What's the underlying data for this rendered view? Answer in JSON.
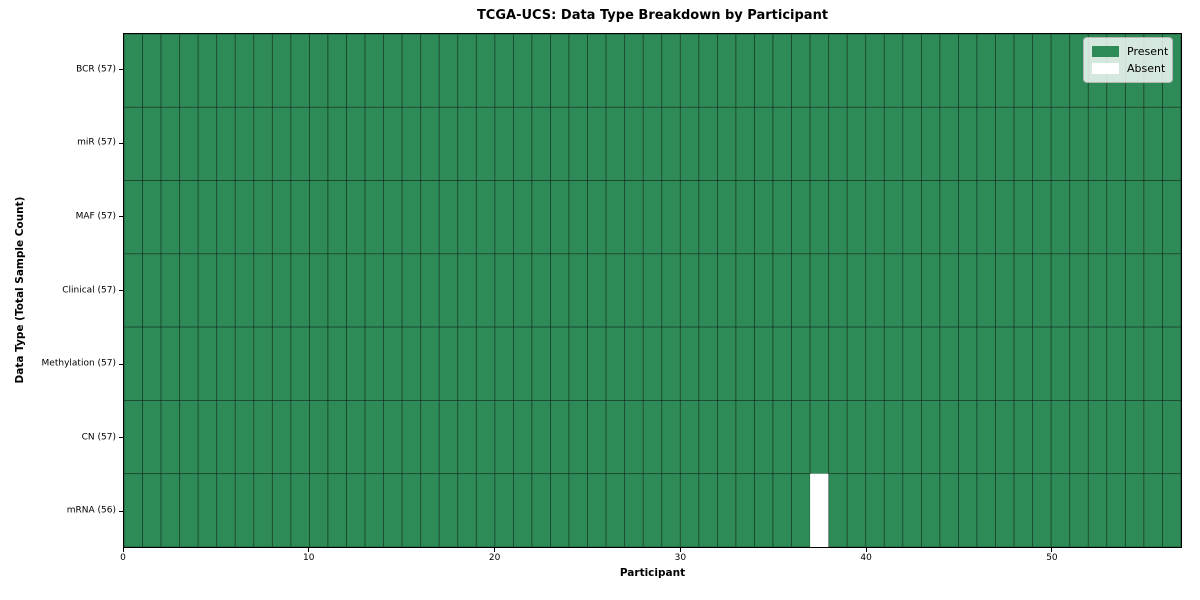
{
  "chart_data": {
    "type": "heatmap",
    "title": "TCGA-UCS: Data Type Breakdown by Participant",
    "xlabel": "Participant",
    "ylabel": "Data Type (Total Sample Count)",
    "n_participants": 57,
    "xlim": [
      0,
      57
    ],
    "x_ticks": [
      0,
      10,
      20,
      30,
      40,
      50
    ],
    "rows": [
      {
        "label": "BCR (57)",
        "data_type": "BCR",
        "total_samples": 57,
        "absent_participants": []
      },
      {
        "label": "miR (57)",
        "data_type": "miR",
        "total_samples": 57,
        "absent_participants": []
      },
      {
        "label": "MAF (57)",
        "data_type": "MAF",
        "total_samples": 57,
        "absent_participants": []
      },
      {
        "label": "Clinical (57)",
        "data_type": "Clinical",
        "total_samples": 57,
        "absent_participants": []
      },
      {
        "label": "Methylation (57)",
        "data_type": "Methylation",
        "total_samples": 57,
        "absent_participants": []
      },
      {
        "label": "CN (57)",
        "data_type": "CN",
        "total_samples": 57,
        "absent_participants": []
      },
      {
        "label": "mRNA (56)",
        "data_type": "mRNA",
        "total_samples": 56,
        "absent_participants": [
          37
        ]
      }
    ],
    "legend": [
      {
        "label": "Present",
        "color": "#2e8b57"
      },
      {
        "label": "Absent",
        "color": "#ffffff"
      }
    ],
    "legend_position": "upper right",
    "grid": false,
    "colors": {
      "present": "#2e8b57",
      "absent": "#ffffff",
      "cell_edge": "#000000",
      "spine": "#000000",
      "background": "#ffffff"
    }
  }
}
